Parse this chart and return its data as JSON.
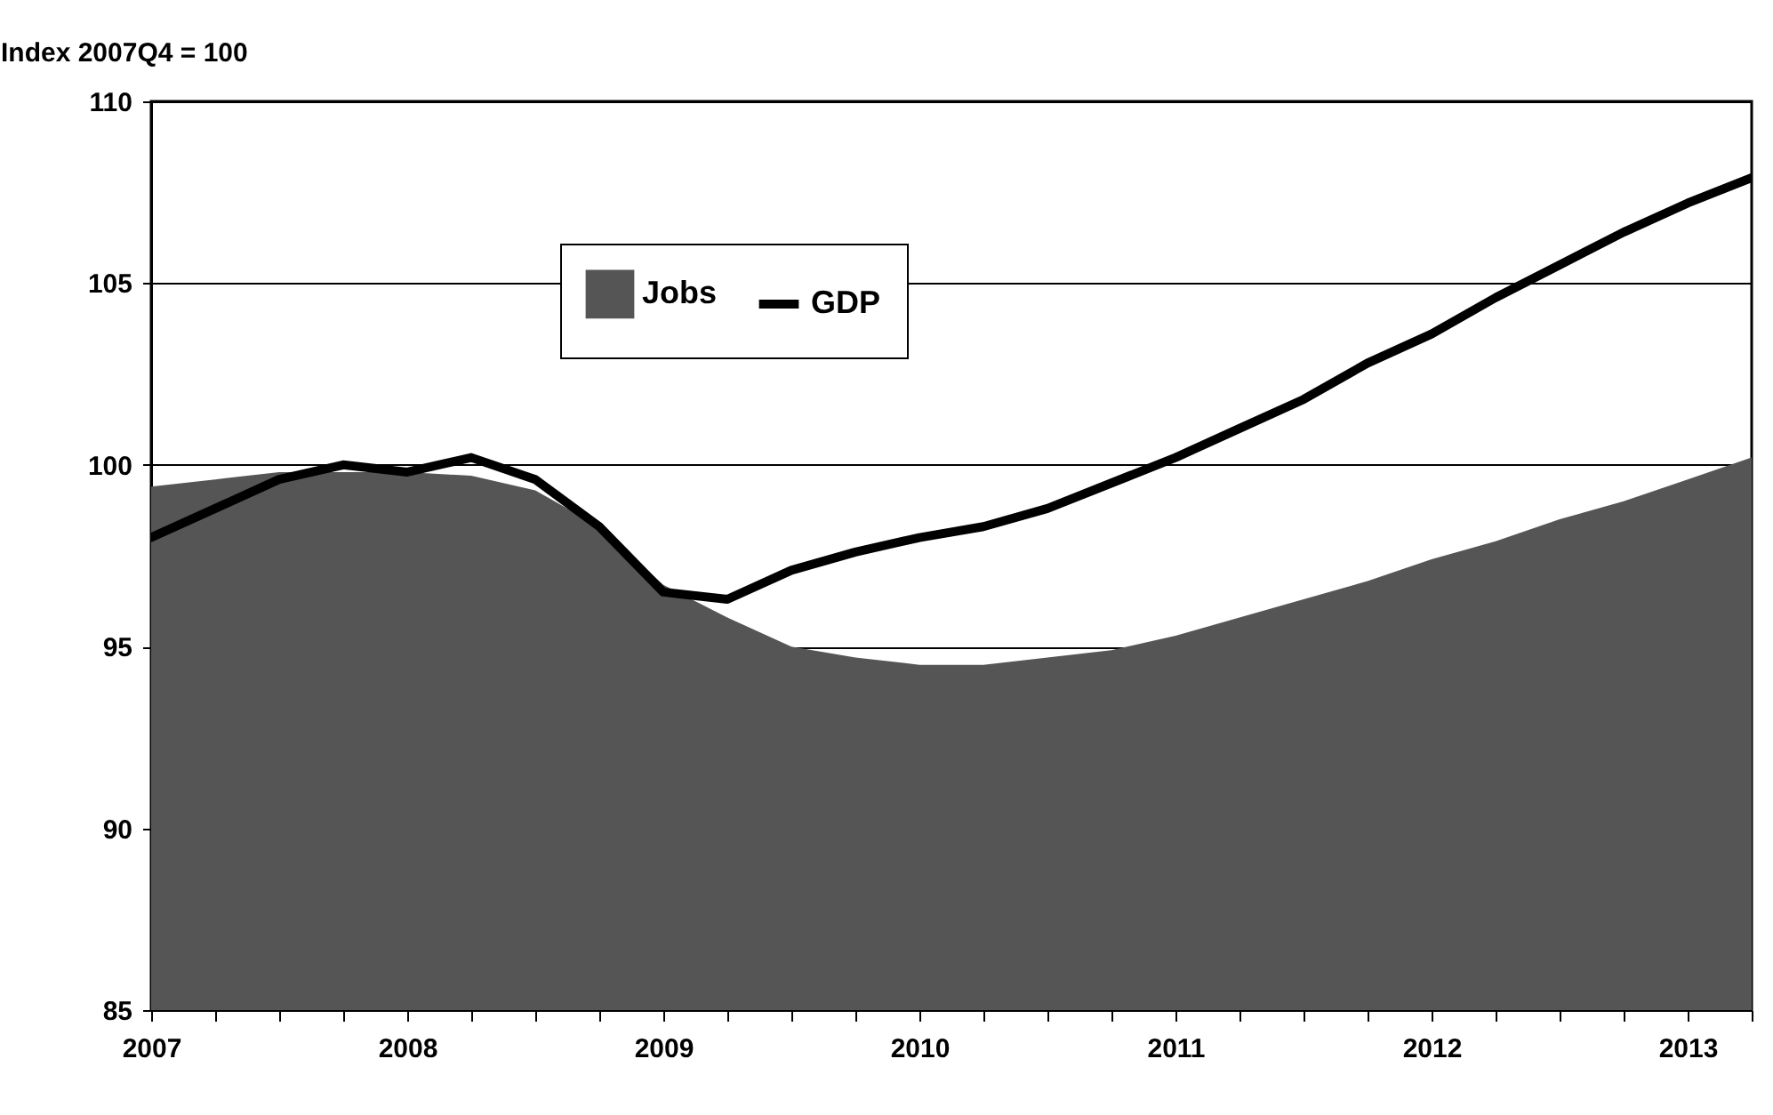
{
  "chart_data": {
    "type": "line",
    "ylabel": "Index 2007Q4  = 100",
    "x": [
      2007,
      2007.25,
      2007.5,
      2007.75,
      2008,
      2008.25,
      2008.5,
      2008.75,
      2009,
      2009.25,
      2009.5,
      2009.75,
      2010,
      2010.25,
      2010.5,
      2010.75,
      2011,
      2011.25,
      2011.5,
      2011.75,
      2012,
      2012.25,
      2012.5,
      2012.75,
      2013,
      2013.25
    ],
    "series": [
      {
        "name": "Jobs",
        "type": "area",
        "color": "#555555",
        "values": [
          99.4,
          99.6,
          99.8,
          99.8,
          99.8,
          99.7,
          99.3,
          98.3,
          96.7,
          95.8,
          95.0,
          94.7,
          94.5,
          94.5,
          94.7,
          94.9,
          95.3,
          95.8,
          96.3,
          96.8,
          97.4,
          97.9,
          98.5,
          99.0,
          99.6,
          100.2
        ]
      },
      {
        "name": "GDP",
        "type": "line",
        "color": "#000000",
        "values": [
          98.0,
          98.8,
          99.6,
          100.0,
          99.8,
          100.2,
          99.6,
          98.3,
          96.5,
          96.3,
          97.1,
          97.6,
          98.0,
          98.3,
          98.8,
          99.5,
          100.2,
          101.0,
          101.8,
          102.8,
          103.6,
          104.6,
          105.5,
          106.4,
          107.2,
          107.9
        ]
      }
    ],
    "xlim": [
      2007,
      2013.25
    ],
    "xticks": [
      2007,
      {
        "value": 2007.25,
        "label": null
      },
      {
        "value": 2007.5,
        "label": null
      },
      {
        "value": 2007.75,
        "label": null
      },
      2008,
      {
        "value": 2008.25,
        "label": null
      },
      {
        "value": 2008.5,
        "label": null
      },
      {
        "value": 2008.75,
        "label": null
      },
      2009,
      {
        "value": 2009.25,
        "label": null
      },
      {
        "value": 2009.5,
        "label": null
      },
      {
        "value": 2009.75,
        "label": null
      },
      2010,
      {
        "value": 2010.25,
        "label": null
      },
      {
        "value": 2010.5,
        "label": null
      },
      {
        "value": 2010.75,
        "label": null
      },
      2011,
      {
        "value": 2011.25,
        "label": null
      },
      {
        "value": 2011.5,
        "label": null
      },
      {
        "value": 2011.75,
        "label": null
      },
      2012,
      {
        "value": 2012.25,
        "label": null
      },
      {
        "value": 2012.5,
        "label": null
      },
      {
        "value": 2012.75,
        "label": null
      },
      2013,
      {
        "value": 2013.25,
        "label": null
      }
    ],
    "ylim": [
      85,
      110
    ],
    "yticks": [
      85,
      90,
      95,
      100,
      105,
      110
    ],
    "grid": "y",
    "legend": "top",
    "marker": "none",
    "line_style": "solid"
  }
}
